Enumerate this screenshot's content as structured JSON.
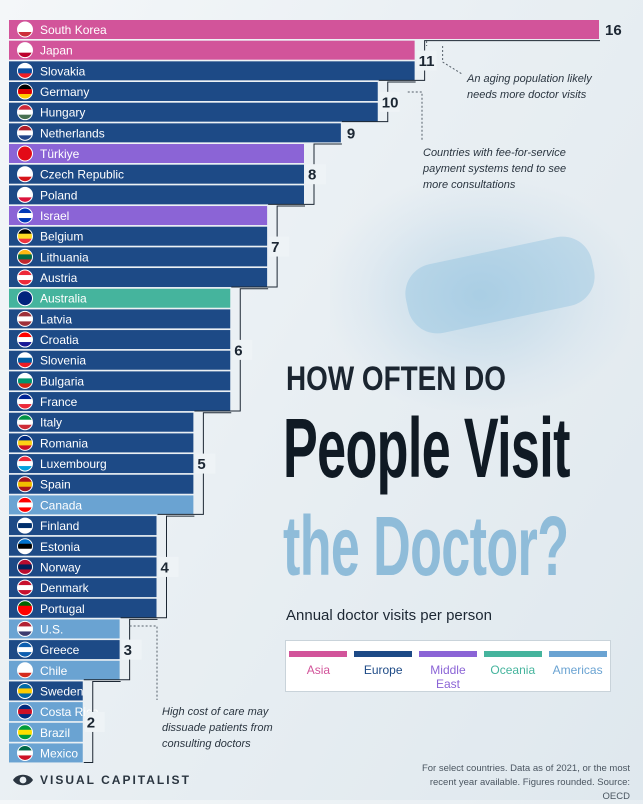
{
  "chart_data": {
    "type": "bar",
    "orientation": "horizontal",
    "title_line1": "HOW OFTEN DO",
    "title_line2": "People Visit",
    "title_line3": "the Doctor?",
    "subtitle": "Annual doctor visits per person",
    "xlabel": "",
    "ylabel": "",
    "xlim": [
      0,
      16
    ],
    "region_colors": {
      "Asia": "#d2549a",
      "Europe": "#1d4a86",
      "Middle East": "#8b64d6",
      "Oceania": "#45b49d",
      "Americas": "#6aa3d2"
    },
    "legend": [
      {
        "label": "Asia",
        "color": "#d2549a"
      },
      {
        "label": "Europe",
        "color": "#1d4a86"
      },
      {
        "label": "Middle East",
        "color": "#8b64d6"
      },
      {
        "label": "Oceania",
        "color": "#45b49d"
      },
      {
        "label": "Americas",
        "color": "#6aa3d2"
      }
    ],
    "bars": [
      {
        "country": "South Korea",
        "value": 16,
        "region": "Asia"
      },
      {
        "country": "Japan",
        "value": 11,
        "region": "Asia"
      },
      {
        "country": "Slovakia",
        "value": 11,
        "region": "Europe"
      },
      {
        "country": "Germany",
        "value": 10,
        "region": "Europe"
      },
      {
        "country": "Hungary",
        "value": 10,
        "region": "Europe"
      },
      {
        "country": "Netherlands",
        "value": 9,
        "region": "Europe"
      },
      {
        "country": "Türkiye",
        "value": 8,
        "region": "Middle East"
      },
      {
        "country": "Czech Republic",
        "value": 8,
        "region": "Europe"
      },
      {
        "country": "Poland",
        "value": 8,
        "region": "Europe"
      },
      {
        "country": "Israel",
        "value": 7,
        "region": "Middle East"
      },
      {
        "country": "Belgium",
        "value": 7,
        "region": "Europe"
      },
      {
        "country": "Lithuania",
        "value": 7,
        "region": "Europe"
      },
      {
        "country": "Austria",
        "value": 7,
        "region": "Europe"
      },
      {
        "country": "Australia",
        "value": 6,
        "region": "Oceania"
      },
      {
        "country": "Latvia",
        "value": 6,
        "region": "Europe"
      },
      {
        "country": "Croatia",
        "value": 6,
        "region": "Europe"
      },
      {
        "country": "Slovenia",
        "value": 6,
        "region": "Europe"
      },
      {
        "country": "Bulgaria",
        "value": 6,
        "region": "Europe"
      },
      {
        "country": "France",
        "value": 6,
        "region": "Europe"
      },
      {
        "country": "Italy",
        "value": 5,
        "region": "Europe"
      },
      {
        "country": "Romania",
        "value": 5,
        "region": "Europe"
      },
      {
        "country": "Luxembourg",
        "value": 5,
        "region": "Europe"
      },
      {
        "country": "Spain",
        "value": 5,
        "region": "Europe"
      },
      {
        "country": "Canada",
        "value": 5,
        "region": "Americas"
      },
      {
        "country": "Finland",
        "value": 4,
        "region": "Europe"
      },
      {
        "country": "Estonia",
        "value": 4,
        "region": "Europe"
      },
      {
        "country": "Norway",
        "value": 4,
        "region": "Europe"
      },
      {
        "country": "Denmark",
        "value": 4,
        "region": "Europe"
      },
      {
        "country": "Portugal",
        "value": 4,
        "region": "Europe"
      },
      {
        "country": "U.S.",
        "value": 3,
        "region": "Americas"
      },
      {
        "country": "Greece",
        "value": 3,
        "region": "Europe"
      },
      {
        "country": "Chile",
        "value": 3,
        "region": "Americas"
      },
      {
        "country": "Sweden",
        "value": 2,
        "region": "Europe"
      },
      {
        "country": "Costa Rica",
        "value": 2,
        "region": "Americas"
      },
      {
        "country": "Brazil",
        "value": 2,
        "region": "Americas"
      },
      {
        "country": "Mexico",
        "value": 2,
        "region": "Americas"
      }
    ],
    "flags": {
      "South Korea": [
        "#ffffff",
        "#ffffff",
        "#cd2e3a"
      ],
      "Japan": [
        "#ffffff",
        "#ffffff",
        "#bc002d"
      ],
      "Slovakia": [
        "#ffffff",
        "#0b4ea2",
        "#ee1c25"
      ],
      "Germany": [
        "#000000",
        "#dd0000",
        "#ffce00"
      ],
      "Hungary": [
        "#ce2939",
        "#ffffff",
        "#477050"
      ],
      "Netherlands": [
        "#ae1c28",
        "#ffffff",
        "#21468b"
      ],
      "Türkiye": [
        "#e30a17",
        "#e30a17",
        "#e30a17"
      ],
      "Czech Republic": [
        "#ffffff",
        "#ffffff",
        "#d7141a"
      ],
      "Poland": [
        "#ffffff",
        "#ffffff",
        "#dc143c"
      ],
      "Israel": [
        "#0038b8",
        "#ffffff",
        "#0038b8"
      ],
      "Belgium": [
        "#000000",
        "#fdda24",
        "#ef3340"
      ],
      "Lithuania": [
        "#fdb913",
        "#006a44",
        "#c1272d"
      ],
      "Austria": [
        "#ed2939",
        "#ffffff",
        "#ed2939"
      ],
      "Australia": [
        "#00247d",
        "#00247d",
        "#00247d"
      ],
      "Latvia": [
        "#9e3039",
        "#ffffff",
        "#9e3039"
      ],
      "Croatia": [
        "#ff0000",
        "#ffffff",
        "#171796"
      ],
      "Slovenia": [
        "#ffffff",
        "#005da4",
        "#ed1c24"
      ],
      "Bulgaria": [
        "#ffffff",
        "#00966e",
        "#d62612"
      ],
      "France": [
        "#002395",
        "#ffffff",
        "#ed2939"
      ],
      "Italy": [
        "#009246",
        "#ffffff",
        "#ce2b37"
      ],
      "Romania": [
        "#002b7f",
        "#fcd116",
        "#ce1126"
      ],
      "Luxembourg": [
        "#ed2939",
        "#ffffff",
        "#00a1de"
      ],
      "Spain": [
        "#aa151b",
        "#f1bf00",
        "#aa151b"
      ],
      "Canada": [
        "#ff0000",
        "#ffffff",
        "#ff0000"
      ],
      "Finland": [
        "#ffffff",
        "#002f6c",
        "#ffffff"
      ],
      "Estonia": [
        "#0072ce",
        "#000000",
        "#ffffff"
      ],
      "Norway": [
        "#ba0c2f",
        "#00205b",
        "#ba0c2f"
      ],
      "Denmark": [
        "#c8102e",
        "#ffffff",
        "#c8102e"
      ],
      "Portugal": [
        "#006600",
        "#ff0000",
        "#ff0000"
      ],
      "U.S.": [
        "#b22234",
        "#ffffff",
        "#3c3b6e"
      ],
      "Greece": [
        "#0d5eaf",
        "#ffffff",
        "#0d5eaf"
      ],
      "Chile": [
        "#ffffff",
        "#ffffff",
        "#d52b1e"
      ],
      "Sweden": [
        "#006aa7",
        "#fecc00",
        "#006aa7"
      ],
      "Costa Rica": [
        "#002b7f",
        "#ce1126",
        "#002b7f"
      ],
      "Brazil": [
        "#009c3b",
        "#ffdf00",
        "#009c3b"
      ],
      "Mexico": [
        "#006847",
        "#ffffff",
        "#ce1126"
      ]
    },
    "annotations": [
      "An aging population likely needs more doctor visits",
      "Countries with fee-for-service payment systems tend to see more consultations",
      "High cost of care may dissuade patients from consulting doctors"
    ]
  },
  "annotations": {
    "aging_line1": "An aging population likely",
    "aging_line2": "needs more doctor visits",
    "fee_line1": "Countries with fee-for-service",
    "fee_line2": "payment systems tend to see",
    "fee_line3": "more consultations",
    "cost_line1": "High cost of care may",
    "cost_line2": "dissuade patients from",
    "cost_line3": "consulting doctors"
  },
  "legend": {
    "asia": "Asia",
    "europe": "Europe",
    "middle_east_1": "Middle",
    "middle_east_2": "East",
    "oceania": "Oceania",
    "americas": "Americas"
  },
  "footer": {
    "brand": "VISUAL CAPITALIST",
    "note_line1": "For select countries.  Data as of 2021, or the most",
    "note_line2": "recent year available. Figures rounded. Source: OECD"
  }
}
